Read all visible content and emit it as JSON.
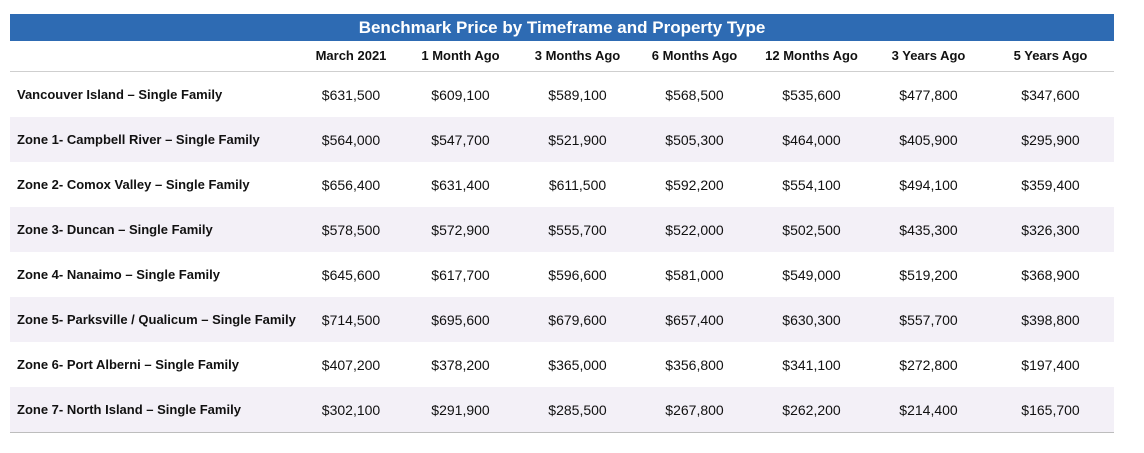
{
  "table": {
    "title": "Benchmark Price by Timeframe and Property Type",
    "columns": [
      "",
      "March 2021",
      "1 Month Ago",
      "3 Months Ago",
      "6 Months Ago",
      "12 Months Ago",
      "3 Years Ago",
      "5 Years Ago"
    ],
    "rows": [
      {
        "label": "Vancouver Island – Single Family",
        "values": [
          "$631,500",
          "$609,100",
          "$589,100",
          "$568,500",
          "$535,600",
          "$477,800",
          "$347,600"
        ]
      },
      {
        "label": "Zone 1- Campbell River – Single Family",
        "values": [
          "$564,000",
          "$547,700",
          "$521,900",
          "$505,300",
          "$464,000",
          "$405,900",
          "$295,900"
        ]
      },
      {
        "label": "Zone 2- Comox Valley – Single Family",
        "values": [
          "$656,400",
          "$631,400",
          "$611,500",
          "$592,200",
          "$554,100",
          "$494,100",
          "$359,400"
        ]
      },
      {
        "label": "Zone 3- Duncan – Single Family",
        "values": [
          "$578,500",
          "$572,900",
          "$555,700",
          "$522,000",
          "$502,500",
          "$435,300",
          "$326,300"
        ]
      },
      {
        "label": "Zone 4- Nanaimo – Single Family",
        "values": [
          "$645,600",
          "$617,700",
          "$596,600",
          "$581,000",
          "$549,000",
          "$519,200",
          "$368,900"
        ]
      },
      {
        "label": "Zone 5- Parksville / Qualicum – Single Family",
        "values": [
          "$714,500",
          "$695,600",
          "$679,600",
          "$657,400",
          "$630,300",
          "$557,700",
          "$398,800"
        ]
      },
      {
        "label": "Zone 6- Port Alberni – Single Family",
        "values": [
          "$407,200",
          "$378,200",
          "$365,000",
          "$356,800",
          "$341,100",
          "$272,800",
          "$197,400"
        ]
      },
      {
        "label": "Zone 7- North Island – Single Family",
        "values": [
          "$302,100",
          "$291,900",
          "$285,500",
          "$267,800",
          "$262,200",
          "$214,400",
          "$165,700"
        ]
      }
    ]
  },
  "colors": {
    "title_bar": "#2e6bb3",
    "shaded_row": "#f3f0f7"
  }
}
